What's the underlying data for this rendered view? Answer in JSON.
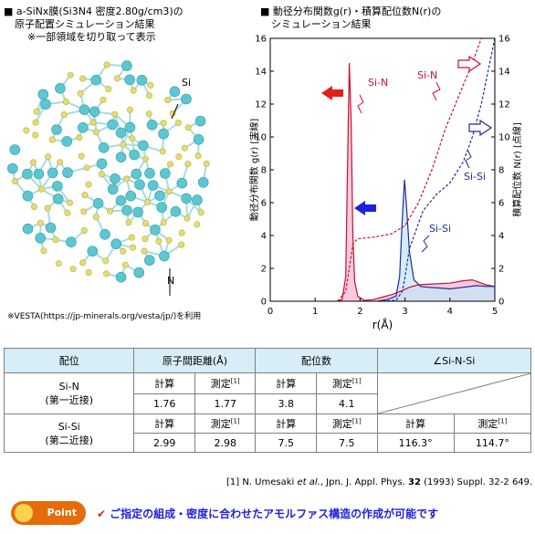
{
  "left_caption": {
    "line1_prefix": "■",
    "line1": "a-SiNx膜(Si3N4 密度2.80g/cm3)の",
    "line2": "原子配置シミュレーション結果",
    "line3": "※一部領域を切り取って表示"
  },
  "model_labels": {
    "si": "Si",
    "n": "N"
  },
  "vesta_note": "※VESTA(https://jp-minerals.org/vesta/jp/)を利用",
  "right_caption": {
    "line1_prefix": "■",
    "line1": "動径分布関数g(r)・積算配位数N(r)の",
    "line2": "シミュレーション結果"
  },
  "chart_data": {
    "type": "line",
    "xlabel": "r(Å)",
    "ylabel_left": "動径分布関数 g(r) [実線]",
    "ylabel_right": "積算配位数 N(r) [点線]",
    "xlim": [
      0,
      5
    ],
    "ylim_left": [
      0,
      16
    ],
    "ylim_right": [
      0,
      16
    ],
    "x_ticks": [
      "0",
      "1",
      "2",
      "3",
      "4",
      "5"
    ],
    "y_ticks_left": [
      "0",
      "2",
      "4",
      "6",
      "8",
      "10",
      "12",
      "14",
      "16"
    ],
    "y_ticks_right": [
      "0",
      "2",
      "4",
      "6",
      "8",
      "10",
      "12",
      "14",
      "16"
    ],
    "annotations": [
      "Si-N",
      "Si-N",
      "Si-Si",
      "Si-Si"
    ],
    "series": [
      {
        "name": "Si-N",
        "kind": "g(r)",
        "style": "solid",
        "color": "#c8102e",
        "fill": "#f4b8d4",
        "x": [
          1.5,
          1.6,
          1.68,
          1.72,
          1.76,
          1.8,
          1.84,
          1.88,
          1.95,
          2.1,
          2.3,
          2.5,
          2.7,
          2.9,
          3.1,
          3.3,
          3.6,
          4.0,
          4.3,
          4.5,
          4.8,
          5.0
        ],
        "y": [
          0,
          0.1,
          1.5,
          8.0,
          14.5,
          11.0,
          4.0,
          1.2,
          0.3,
          0.05,
          0.1,
          0.25,
          0.4,
          0.6,
          0.85,
          1.0,
          1.05,
          1.1,
          1.25,
          1.3,
          1.0,
          0.9
        ]
      },
      {
        "name": "Si-Si",
        "kind": "g(r)",
        "style": "solid",
        "color": "#1f2c9c",
        "fill": "#c6e6f5",
        "x": [
          2.4,
          2.6,
          2.8,
          2.88,
          2.94,
          2.99,
          3.04,
          3.1,
          3.2,
          3.35,
          3.5,
          3.8,
          4.0,
          4.3,
          4.6,
          4.8,
          5.0
        ],
        "y": [
          0,
          0.1,
          0.3,
          1.5,
          5.0,
          7.4,
          5.5,
          3.0,
          1.3,
          0.9,
          0.85,
          0.8,
          0.75,
          0.85,
          0.95,
          0.9,
          0.9
        ]
      },
      {
        "name": "Si-N",
        "kind": "N(r)",
        "style": "dashed",
        "color": "#c8102e",
        "x": [
          1.5,
          1.68,
          1.76,
          1.84,
          1.95,
          2.3,
          2.7,
          3.0,
          3.3,
          3.6,
          3.9,
          4.2,
          4.5,
          4.7
        ],
        "y": [
          0,
          0.6,
          2.0,
          3.5,
          3.8,
          3.9,
          4.1,
          4.6,
          6.0,
          8.0,
          10.5,
          12.5,
          14.5,
          16.0
        ]
      },
      {
        "name": "Si-Si",
        "kind": "N(r)",
        "style": "dashed",
        "color": "#1f2c9c",
        "x": [
          2.4,
          2.8,
          2.94,
          2.99,
          3.1,
          3.4,
          3.7,
          4.0,
          4.3,
          4.5,
          4.7,
          4.85,
          5.0
        ],
        "y": [
          0,
          0.05,
          0.6,
          1.3,
          3.2,
          5.5,
          6.5,
          7.2,
          8.5,
          10.0,
          12.0,
          14.0,
          16.0
        ]
      }
    ],
    "grid": false
  },
  "table": {
    "headers": [
      "配位",
      "原子間距離(Å)",
      "配位数",
      "∠Si-N-Si"
    ],
    "sub_calc": "計算",
    "sub_meas": "測定",
    "ref_mark": "[1]",
    "rows": [
      {
        "name_line1": "Si-N",
        "name_line2": "(第一近接)",
        "dist_calc": "1.76",
        "dist_meas": "1.77",
        "cn_calc": "3.8",
        "cn_meas": "4.1",
        "angle_calc": "",
        "angle_meas": ""
      },
      {
        "name_line1": "Si-Si",
        "name_line2": "(第二近接)",
        "dist_calc": "2.99",
        "dist_meas": "2.98",
        "cn_calc": "7.5",
        "cn_meas": "7.5",
        "angle_calc": "116.3°",
        "angle_meas": "114.7°"
      }
    ]
  },
  "reference": {
    "prefix": "[1] N. Umesaki ",
    "etal": "et al.",
    "journal": ", Jpn. J. Appl. Phys. ",
    "volume": "32",
    "rest": " (1993)  Suppl. 32-2 649."
  },
  "point_label": "Point",
  "slogan": "ご指定の組成・密度に合わせたアモルファス構造の作成が可能です",
  "colors": {
    "atom_si": "#5cc7d0",
    "atom_n": "#e6dd72",
    "bond": "#a8dce0",
    "accent_red": "#e0201c",
    "accent_blue": "#1f1fe0",
    "table_header": "#d7eef8"
  }
}
